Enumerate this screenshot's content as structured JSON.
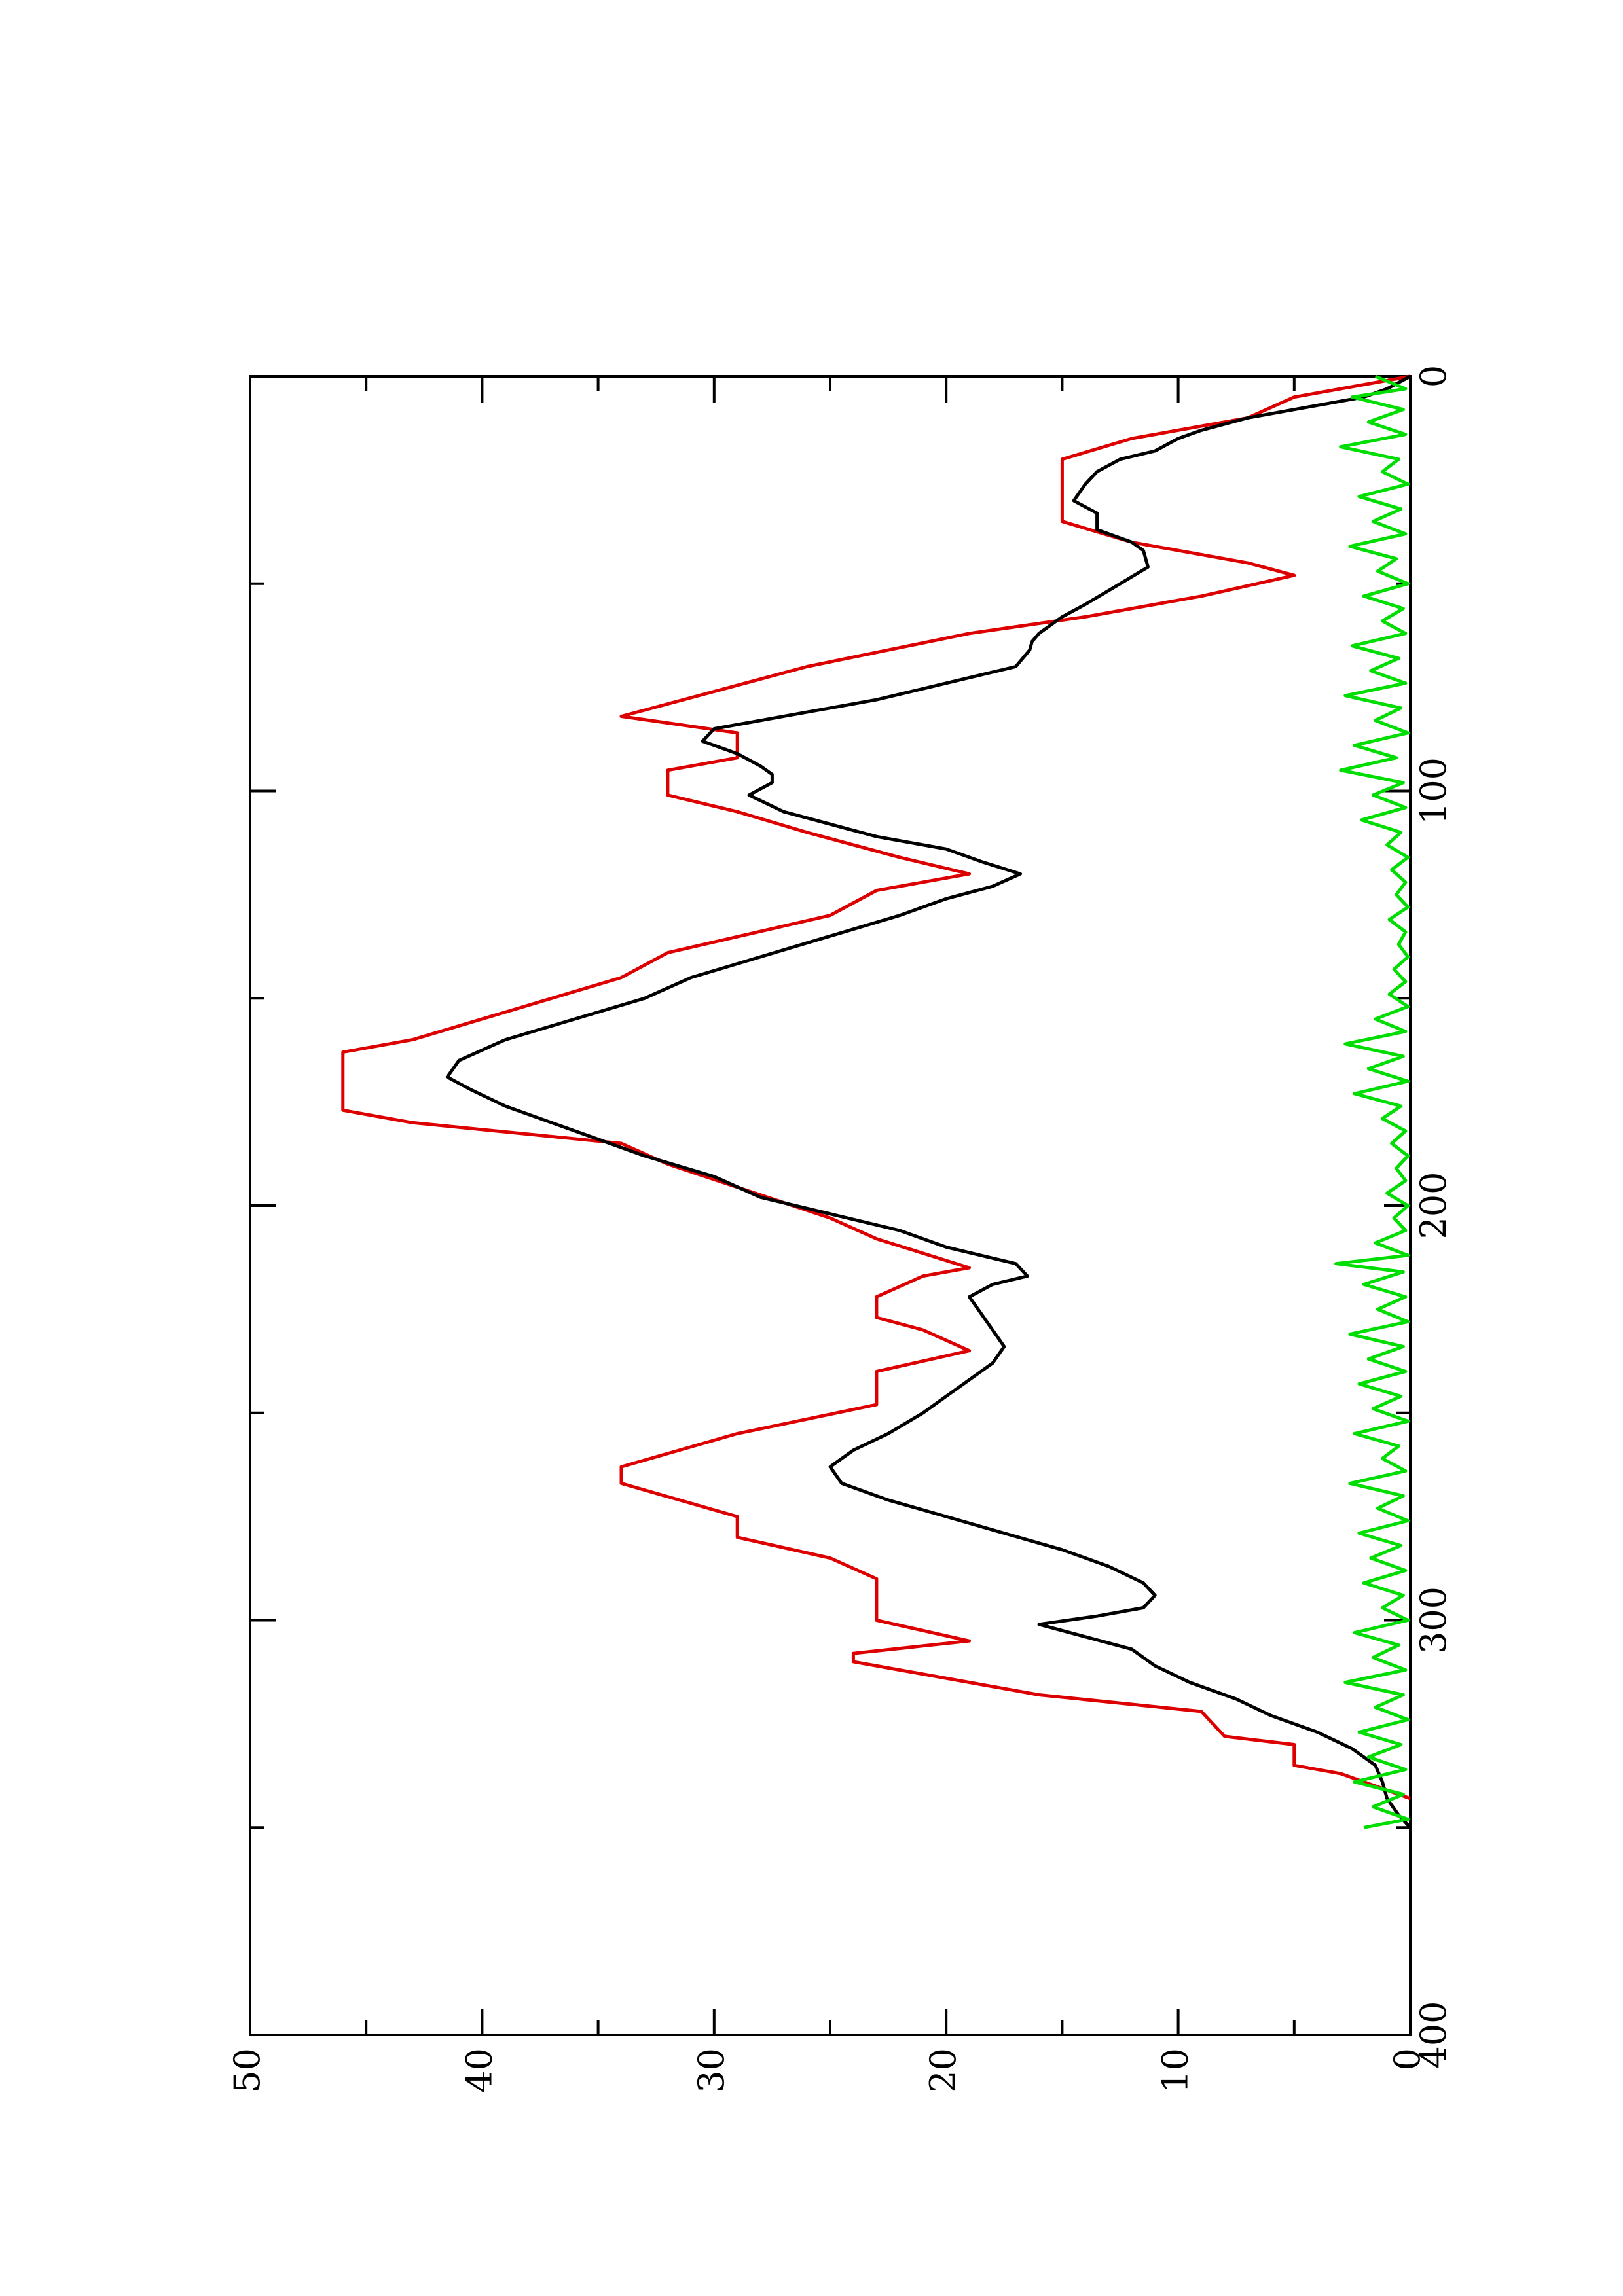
{
  "chart_data": {
    "type": "line",
    "orientation": "rotated 90 degrees counter-clockwise",
    "title": "",
    "xlabel": "",
    "ylabel": "",
    "xlim": [
      0,
      400
    ],
    "ylim": [
      0,
      50
    ],
    "x_ticks": [
      "0",
      "100",
      "200",
      "300",
      "400"
    ],
    "y_ticks": [
      "0",
      "10",
      "20",
      "30",
      "40",
      "50"
    ],
    "grid": false,
    "legend": "none",
    "series": [
      {
        "color": "#dd0000",
        "style": "step",
        "points": [
          [
            0,
            0
          ],
          [
            5,
            5
          ],
          [
            10,
            7
          ],
          [
            15,
            12
          ],
          [
            20,
            15
          ],
          [
            35,
            15
          ],
          [
            40,
            12
          ],
          [
            45,
            7
          ],
          [
            48,
            5
          ],
          [
            53,
            9
          ],
          [
            58,
            14
          ],
          [
            62,
            19
          ],
          [
            70,
            26
          ],
          [
            82,
            34
          ],
          [
            86,
            29
          ],
          [
            92,
            29
          ],
          [
            95,
            32
          ],
          [
            101,
            32
          ],
          [
            105,
            29
          ],
          [
            110,
            26
          ],
          [
            116,
            22
          ],
          [
            120,
            19
          ],
          [
            124,
            23
          ],
          [
            130,
            25
          ],
          [
            139,
            32
          ],
          [
            145,
            34
          ],
          [
            150,
            37
          ],
          [
            160,
            43
          ],
          [
            163,
            46
          ],
          [
            177,
            46
          ],
          [
            180,
            43
          ],
          [
            185,
            34
          ],
          [
            190,
            32
          ],
          [
            203,
            25
          ],
          [
            208,
            23
          ],
          [
            215,
            19
          ],
          [
            217,
            21
          ],
          [
            222,
            23
          ],
          [
            227,
            23
          ],
          [
            230,
            21
          ],
          [
            235,
            19
          ],
          [
            240,
            23
          ],
          [
            248,
            23
          ],
          [
            255,
            29
          ],
          [
            263,
            34
          ],
          [
            267,
            34
          ],
          [
            275,
            29
          ],
          [
            280,
            29
          ],
          [
            285,
            25
          ],
          [
            290,
            23
          ],
          [
            300,
            23
          ],
          [
            305,
            19
          ],
          [
            308,
            24
          ],
          [
            310,
            24
          ],
          [
            318,
            16
          ],
          [
            322,
            9
          ],
          [
            328,
            8
          ],
          [
            330,
            5
          ],
          [
            335,
            5
          ],
          [
            337,
            3
          ],
          [
            343,
            0
          ]
        ]
      },
      {
        "color": "#000000",
        "style": "line",
        "points": [
          [
            0,
            0
          ],
          [
            3,
            1
          ],
          [
            5,
            2
          ],
          [
            8,
            5
          ],
          [
            10,
            7
          ],
          [
            13,
            9
          ],
          [
            15,
            10
          ],
          [
            18,
            11
          ],
          [
            20,
            12.5
          ],
          [
            23,
            13.5
          ],
          [
            26,
            14
          ],
          [
            30,
            14.5
          ],
          [
            33,
            13.5
          ],
          [
            37,
            13.5
          ],
          [
            40,
            12
          ],
          [
            42,
            11.5
          ],
          [
            46,
            11.3
          ],
          [
            50,
            12.5
          ],
          [
            55,
            14
          ],
          [
            58,
            15
          ],
          [
            62,
            16
          ],
          [
            64,
            16.3
          ],
          [
            66,
            16.4
          ],
          [
            70,
            17
          ],
          [
            74,
            20
          ],
          [
            78,
            23
          ],
          [
            81,
            26
          ],
          [
            83,
            28
          ],
          [
            85,
            30
          ],
          [
            88,
            30.5
          ],
          [
            91,
            29
          ],
          [
            94,
            28
          ],
          [
            96,
            27.5
          ],
          [
            98,
            27.5
          ],
          [
            101,
            28.5
          ],
          [
            105,
            27
          ],
          [
            108,
            25
          ],
          [
            111,
            23
          ],
          [
            114,
            20
          ],
          [
            117,
            18.5
          ],
          [
            120,
            16.8
          ],
          [
            123,
            18
          ],
          [
            126,
            20
          ],
          [
            130,
            22
          ],
          [
            135,
            25
          ],
          [
            140,
            28
          ],
          [
            145,
            31
          ],
          [
            150,
            33
          ],
          [
            155,
            36
          ],
          [
            160,
            39
          ],
          [
            165,
            41
          ],
          [
            169,
            41.5
          ],
          [
            172,
            40.5
          ],
          [
            176,
            39
          ],
          [
            180,
            37
          ],
          [
            184,
            35
          ],
          [
            188,
            33
          ],
          [
            193,
            30
          ],
          [
            198,
            28
          ],
          [
            202,
            25
          ],
          [
            206,
            22
          ],
          [
            210,
            20
          ],
          [
            214,
            17
          ],
          [
            217,
            16.5
          ],
          [
            219,
            18
          ],
          [
            222,
            19
          ],
          [
            226,
            18.5
          ],
          [
            230,
            18
          ],
          [
            234,
            17.5
          ],
          [
            238,
            18
          ],
          [
            242,
            19
          ],
          [
            246,
            20
          ],
          [
            250,
            21
          ],
          [
            255,
            22.5
          ],
          [
            259,
            24
          ],
          [
            263,
            25
          ],
          [
            267,
            24.5
          ],
          [
            271,
            22.5
          ],
          [
            275,
            20
          ],
          [
            279,
            17.5
          ],
          [
            283,
            15
          ],
          [
            287,
            13
          ],
          [
            291,
            11.5
          ],
          [
            294,
            11
          ],
          [
            297,
            11.5
          ],
          [
            299,
            13.5
          ],
          [
            301,
            16
          ],
          [
            304,
            14
          ],
          [
            307,
            12
          ],
          [
            311,
            11
          ],
          [
            315,
            9.5
          ],
          [
            319,
            7.5
          ],
          [
            323,
            6
          ],
          [
            327,
            4
          ],
          [
            331,
            2.5
          ],
          [
            335,
            1.5
          ],
          [
            339,
            1.2
          ],
          [
            343,
            1
          ],
          [
            347,
            0.5
          ],
          [
            350,
            0
          ]
        ]
      },
      {
        "color": "#00dd00",
        "style": "line",
        "points": [
          [
            0,
            1.5
          ],
          [
            3,
            0.2
          ],
          [
            5,
            2.5
          ],
          [
            8,
            0.3
          ],
          [
            11,
            1.8
          ],
          [
            14,
            0.2
          ],
          [
            17,
            3
          ],
          [
            20,
            0.5
          ],
          [
            23,
            1.2
          ],
          [
            26,
            0.1
          ],
          [
            29,
            2.2
          ],
          [
            32,
            0.4
          ],
          [
            35,
            1.6
          ],
          [
            38,
            0.2
          ],
          [
            41,
            2.6
          ],
          [
            44,
            0.6
          ],
          [
            47,
            1.4
          ],
          [
            50,
            0.1
          ],
          [
            53,
            2
          ],
          [
            56,
            0.3
          ],
          [
            59,
            1.2
          ],
          [
            62,
            0.2
          ],
          [
            65,
            2.5
          ],
          [
            68,
            0.5
          ],
          [
            71,
            1.7
          ],
          [
            74,
            0.2
          ],
          [
            77,
            2.8
          ],
          [
            80,
            0.4
          ],
          [
            83,
            1.5
          ],
          [
            86,
            0.1
          ],
          [
            89,
            2.4
          ],
          [
            92,
            0.6
          ],
          [
            95,
            3
          ],
          [
            98,
            0.3
          ],
          [
            101,
            1.6
          ],
          [
            104,
            0.2
          ],
          [
            107,
            2.1
          ],
          [
            110,
            0.4
          ],
          [
            113,
            1
          ],
          [
            116,
            0.1
          ],
          [
            119,
            0.8
          ],
          [
            122,
            0.2
          ],
          [
            125,
            0.6
          ],
          [
            128,
            0.1
          ],
          [
            131,
            0.9
          ],
          [
            134,
            0.2
          ],
          [
            137,
            0.5
          ],
          [
            140,
            0.1
          ],
          [
            143,
            0.7
          ],
          [
            146,
            0.2
          ],
          [
            149,
            0.9
          ],
          [
            152,
            0.1
          ],
          [
            155,
            1.5
          ],
          [
            158,
            0.2
          ],
          [
            161,
            2.8
          ],
          [
            164,
            0.3
          ],
          [
            167,
            1.8
          ],
          [
            170,
            0.1
          ],
          [
            173,
            2.4
          ],
          [
            176,
            0.4
          ],
          [
            179,
            1.2
          ],
          [
            182,
            0.2
          ],
          [
            185,
            0.8
          ],
          [
            188,
            0.1
          ],
          [
            191,
            0.6
          ],
          [
            194,
            0.2
          ],
          [
            197,
            1
          ],
          [
            200,
            0.1
          ],
          [
            203,
            0.7
          ],
          [
            206,
            0.2
          ],
          [
            209,
            1.5
          ],
          [
            212,
            0.1
          ],
          [
            214,
            3.2
          ],
          [
            216,
            0.3
          ],
          [
            219,
            2
          ],
          [
            222,
            0.2
          ],
          [
            225,
            1.4
          ],
          [
            228,
            0.1
          ],
          [
            231,
            2.6
          ],
          [
            234,
            0.3
          ],
          [
            237,
            1.8
          ],
          [
            240,
            0.2
          ],
          [
            243,
            2.2
          ],
          [
            246,
            0.4
          ],
          [
            249,
            1.6
          ],
          [
            252,
            0.1
          ],
          [
            255,
            2.4
          ],
          [
            258,
            0.5
          ],
          [
            261,
            1.2
          ],
          [
            264,
            0.2
          ],
          [
            267,
            2.6
          ],
          [
            270,
            0.3
          ],
          [
            273,
            1.4
          ],
          [
            276,
            0.1
          ],
          [
            279,
            2.2
          ],
          [
            282,
            0.4
          ],
          [
            285,
            1.7
          ],
          [
            288,
            0.2
          ],
          [
            291,
            2
          ],
          [
            294,
            0.3
          ],
          [
            297,
            1.2
          ],
          [
            300,
            0.1
          ],
          [
            303,
            2.4
          ],
          [
            306,
            0.5
          ],
          [
            309,
            1.6
          ],
          [
            312,
            0.2
          ],
          [
            315,
            2.8
          ],
          [
            318,
            0.3
          ],
          [
            321,
            1.5
          ],
          [
            324,
            0.1
          ],
          [
            327,
            2.2
          ],
          [
            330,
            0.4
          ],
          [
            333,
            1.8
          ],
          [
            336,
            0.2
          ],
          [
            339,
            2.4
          ],
          [
            342,
            0.3
          ],
          [
            345,
            1.6
          ],
          [
            348,
            0.1
          ],
          [
            350,
            2
          ]
        ]
      }
    ]
  }
}
